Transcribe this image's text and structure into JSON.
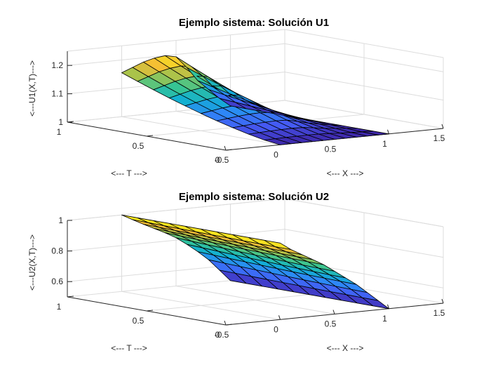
{
  "chart_data": [
    {
      "type": "surface",
      "title": "Ejemplo sistema: Solución U1",
      "xlabel": "<--- X --->",
      "ylabel": "<--- T --->",
      "zlabel": "<---U1(X,T)--->",
      "xlim": [
        -0.5,
        1.5
      ],
      "ylim": [
        0,
        1
      ],
      "zlim": [
        1,
        1.25
      ],
      "xticks": [
        -0.5,
        0,
        0.5,
        1,
        1.5
      ],
      "yticks": [
        0,
        0.5,
        1
      ],
      "zticks": [
        1,
        1.1,
        1.2
      ],
      "xtick_labels": [
        "-0.5",
        "0",
        "0.5",
        "1",
        "1.5"
      ],
      "ytick_labels": [
        "0",
        "0.5",
        "1"
      ],
      "ztick_labels": [
        "1",
        "1.1",
        "1.2"
      ],
      "x": [
        0,
        0.1,
        0.2,
        0.3,
        0.4,
        0.5,
        0.6,
        0.7,
        0.8,
        0.9,
        1
      ],
      "t": [
        0,
        0.1,
        0.2,
        0.3,
        0.4,
        0.5,
        0.6,
        0.7,
        0.8,
        0.9,
        1
      ],
      "z_at_t0": [
        1,
        1,
        1,
        1,
        1,
        1,
        1,
        1,
        1,
        1,
        1
      ],
      "z_at_t1": [
        1.155,
        1.17,
        1.185,
        1.195,
        1.2,
        1.192,
        1.15,
        1.1,
        1.065,
        1.03,
        1.0
      ],
      "grid": true,
      "colormap": "parula"
    },
    {
      "type": "surface",
      "title": "Ejemplo sistema: Solución U2",
      "xlabel": "<--- X --->",
      "ylabel": "<--- T --->",
      "zlabel": "<---U2(X,T)--->",
      "xlim": [
        -0.5,
        1.5
      ],
      "ylim": [
        0,
        1
      ],
      "zlim": [
        0.5,
        1
      ],
      "xticks": [
        -0.5,
        0,
        0.5,
        1,
        1.5
      ],
      "yticks": [
        0,
        0.5,
        1
      ],
      "zticks": [
        0.6,
        0.8,
        1
      ],
      "xtick_labels": [
        "-0.5",
        "0",
        "0.5",
        "1",
        "1.5"
      ],
      "ytick_labels": [
        "0",
        "0.5",
        "1"
      ],
      "ztick_labels": [
        "0.6",
        "0.8",
        "1"
      ],
      "x": [
        0,
        0.1,
        0.2,
        0.3,
        0.4,
        0.5,
        0.6,
        0.7,
        0.8,
        0.9,
        1
      ],
      "t": [
        0,
        0.1,
        0.2,
        0.3,
        0.4,
        0.5,
        0.6,
        0.7,
        0.8,
        0.9,
        1
      ],
      "z_at_t0": [
        1,
        0.95,
        0.91,
        0.87,
        0.83,
        0.78,
        0.73,
        0.68,
        0.62,
        0.56,
        0.5
      ],
      "z_at_t1": [
        1,
        0.962,
        0.925,
        0.89,
        0.855,
        0.815,
        0.765,
        0.71,
        0.65,
        0.575,
        0.5
      ],
      "grid": true,
      "colormap": "parula"
    }
  ]
}
